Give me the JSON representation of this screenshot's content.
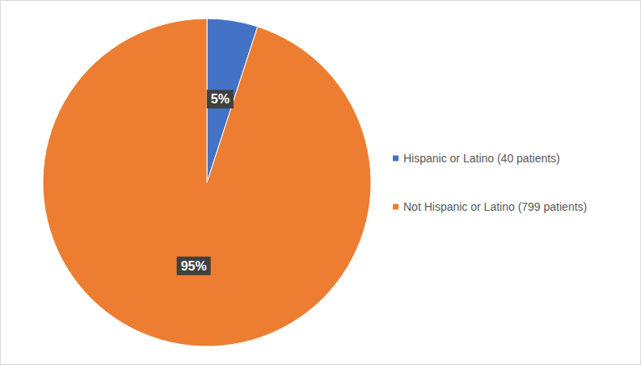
{
  "chart_data": {
    "type": "pie",
    "categories": [
      "Hispanic or Latino (40 patients)",
      "Not Hispanic or Latino (799 patients)"
    ],
    "values": [
      5,
      95
    ],
    "value_labels": [
      "5%",
      "95%"
    ],
    "colors": [
      "#4472c4",
      "#ed7d31"
    ],
    "data_labels": true,
    "legend": "right"
  }
}
